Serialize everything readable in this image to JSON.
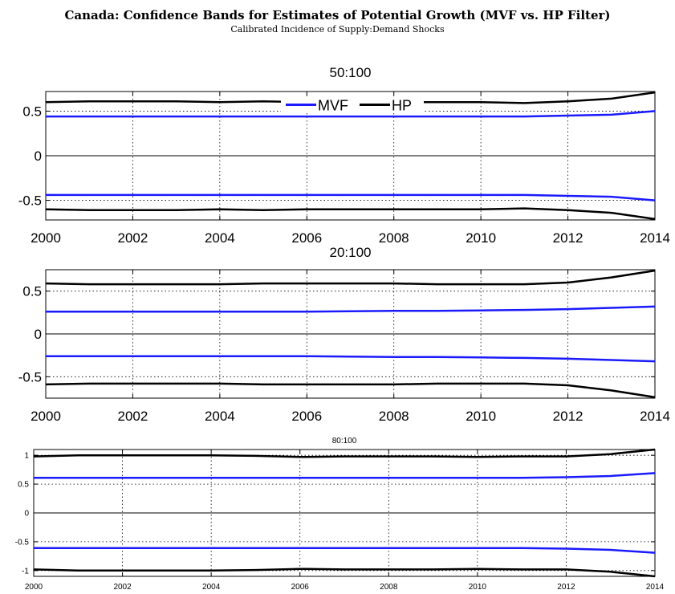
{
  "title": "Canada: Confidence Bands for Estimates of Potential Growth (MVF vs. HP Filter)",
  "subtitle": "Calibrated Incidence of Supply:Demand Shocks",
  "chart_data": [
    {
      "type": "line",
      "title": "50:100",
      "x": [
        2000,
        2001,
        2002,
        2003,
        2004,
        2005,
        2006,
        2007,
        2008,
        2009,
        2010,
        2011,
        2012,
        2013,
        2014
      ],
      "xlim": [
        2000,
        2014
      ],
      "ylim": [
        -0.72,
        0.72
      ],
      "yticks": [
        -0.5,
        0,
        0.5
      ],
      "ytick_labels": [
        "-0.5",
        "0",
        "0.5"
      ],
      "xticks": [
        2000,
        2002,
        2004,
        2006,
        2008,
        2010,
        2012,
        2014
      ],
      "xtick_labels": [
        "2000",
        "2002",
        "2004",
        "2006",
        "2008",
        "2010",
        "2012",
        "2014"
      ],
      "legend": {
        "position": "top-center",
        "entries": [
          "MVF",
          "HP"
        ]
      },
      "colors": {
        "MVF": "#1a1aff",
        "HP": "#000000"
      },
      "series": [
        {
          "name": "MVF",
          "values": [
            0.44,
            0.44,
            0.44,
            0.44,
            0.44,
            0.44,
            0.44,
            0.44,
            0.44,
            0.44,
            0.44,
            0.44,
            0.45,
            0.46,
            0.5
          ]
        },
        {
          "name": "MVF",
          "values": [
            -0.44,
            -0.44,
            -0.44,
            -0.44,
            -0.44,
            -0.44,
            -0.44,
            -0.44,
            -0.44,
            -0.44,
            -0.44,
            -0.44,
            -0.45,
            -0.46,
            -0.5
          ]
        },
        {
          "name": "HP",
          "values": [
            0.6,
            0.61,
            0.61,
            0.61,
            0.6,
            0.61,
            0.6,
            0.6,
            0.6,
            0.6,
            0.6,
            0.59,
            0.61,
            0.64,
            0.71
          ]
        },
        {
          "name": "HP",
          "values": [
            -0.6,
            -0.61,
            -0.61,
            -0.61,
            -0.6,
            -0.61,
            -0.6,
            -0.6,
            -0.6,
            -0.6,
            -0.6,
            -0.59,
            -0.61,
            -0.64,
            -0.71
          ]
        }
      ]
    },
    {
      "type": "line",
      "title": "20:100",
      "x": [
        2000,
        2001,
        2002,
        2003,
        2004,
        2005,
        2006,
        2007,
        2008,
        2009,
        2010,
        2011,
        2012,
        2013,
        2014
      ],
      "xlim": [
        2000,
        2014
      ],
      "ylim": [
        -0.75,
        0.75
      ],
      "yticks": [
        -0.5,
        0,
        0.5
      ],
      "ytick_labels": [
        "-0.5",
        "0",
        "0.5"
      ],
      "xticks": [
        2000,
        2002,
        2004,
        2006,
        2008,
        2010,
        2012,
        2014
      ],
      "xtick_labels": [
        "2000",
        "2002",
        "2004",
        "2006",
        "2008",
        "2010",
        "2012",
        "2014"
      ],
      "colors": {
        "MVF": "#1a1aff",
        "HP": "#000000"
      },
      "series": [
        {
          "name": "MVF",
          "values": [
            0.26,
            0.26,
            0.26,
            0.26,
            0.26,
            0.26,
            0.26,
            0.265,
            0.27,
            0.27,
            0.275,
            0.28,
            0.29,
            0.305,
            0.32
          ]
        },
        {
          "name": "MVF",
          "values": [
            -0.26,
            -0.26,
            -0.26,
            -0.26,
            -0.26,
            -0.26,
            -0.26,
            -0.265,
            -0.27,
            -0.27,
            -0.275,
            -0.28,
            -0.29,
            -0.305,
            -0.32
          ]
        },
        {
          "name": "HP",
          "values": [
            0.59,
            0.58,
            0.58,
            0.58,
            0.58,
            0.59,
            0.59,
            0.59,
            0.59,
            0.58,
            0.58,
            0.58,
            0.6,
            0.66,
            0.74
          ]
        },
        {
          "name": "HP",
          "values": [
            -0.59,
            -0.58,
            -0.58,
            -0.58,
            -0.58,
            -0.59,
            -0.59,
            -0.59,
            -0.59,
            -0.58,
            -0.58,
            -0.58,
            -0.6,
            -0.66,
            -0.74
          ]
        }
      ]
    },
    {
      "type": "line",
      "title": "80:100",
      "x": [
        2000,
        2001,
        2002,
        2003,
        2004,
        2005,
        2006,
        2007,
        2008,
        2009,
        2010,
        2011,
        2012,
        2013,
        2014
      ],
      "xlim": [
        2000,
        2014
      ],
      "ylim": [
        -1.1,
        1.1
      ],
      "yticks": [
        -1,
        -0.5,
        0,
        0.5,
        1
      ],
      "ytick_labels": [
        "-1",
        "-0.5",
        "0",
        "0.5",
        "1"
      ],
      "xticks": [
        2000,
        2002,
        2004,
        2006,
        2008,
        2010,
        2012,
        2014
      ],
      "xtick_labels": [
        "2000",
        "2002",
        "2004",
        "2006",
        "2008",
        "2010",
        "2012",
        "2014"
      ],
      "colors": {
        "MVF": "#1a1aff",
        "HP": "#000000"
      },
      "series": [
        {
          "name": "MVF",
          "values": [
            0.61,
            0.61,
            0.61,
            0.61,
            0.61,
            0.61,
            0.61,
            0.61,
            0.61,
            0.61,
            0.61,
            0.61,
            0.62,
            0.64,
            0.69
          ]
        },
        {
          "name": "MVF",
          "values": [
            -0.61,
            -0.61,
            -0.61,
            -0.61,
            -0.61,
            -0.61,
            -0.61,
            -0.61,
            -0.61,
            -0.61,
            -0.61,
            -0.61,
            -0.62,
            -0.64,
            -0.69
          ]
        },
        {
          "name": "HP",
          "values": [
            0.98,
            1.0,
            1.0,
            1.0,
            1.0,
            0.99,
            0.97,
            0.98,
            0.98,
            0.98,
            0.97,
            0.98,
            0.98,
            1.02,
            1.1
          ]
        },
        {
          "name": "HP",
          "values": [
            -0.98,
            -1.0,
            -1.0,
            -1.0,
            -1.0,
            -0.99,
            -0.97,
            -0.98,
            -0.98,
            -0.98,
            -0.97,
            -0.98,
            -0.98,
            -1.02,
            -1.1
          ]
        }
      ]
    }
  ]
}
